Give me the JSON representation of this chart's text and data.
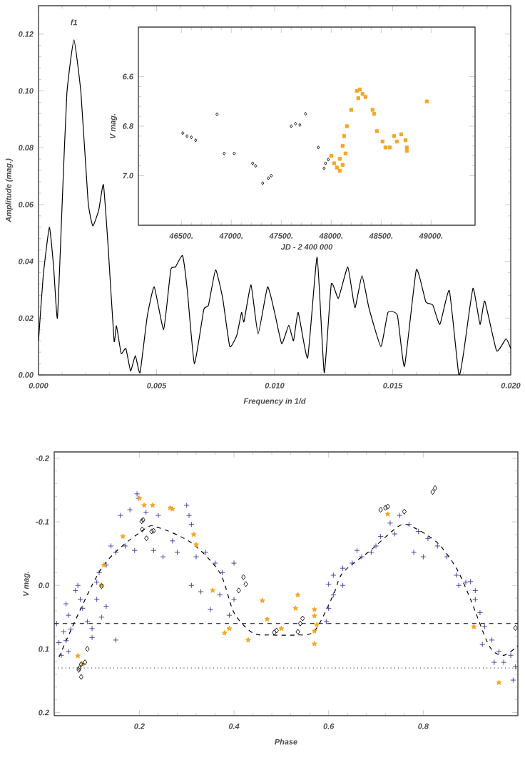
{
  "chart_data": [
    {
      "type": "line",
      "color": "#000000",
      "xlabel": "Frequency in 1/d",
      "ylabel": "Amplitude (mag.)",
      "xlim": [
        0,
        0.02
      ],
      "ylim": [
        0,
        0.13
      ],
      "xticks": [
        {
          "value": 0,
          "label": "0.000"
        },
        {
          "value": 0.005,
          "label": "0.005"
        },
        {
          "value": 0.01,
          "label": "0.010"
        },
        {
          "value": 0.015,
          "label": "0.015"
        },
        {
          "value": 0.02,
          "label": "0.020"
        }
      ],
      "yticks": [
        {
          "value": 0,
          "label": "0.00"
        },
        {
          "value": 0.02,
          "label": "0.02"
        },
        {
          "value": 0.04,
          "label": "0.04"
        },
        {
          "value": 0.06,
          "label": "0.06"
        },
        {
          "value": 0.08,
          "label": "0.08"
        },
        {
          "value": 0.1,
          "label": "0.10"
        },
        {
          "value": 0.12,
          "label": "0.12"
        }
      ],
      "annotations": [
        "f1"
      ],
      "x": [
        0,
        0.0002,
        0.00046,
        0.00064,
        0.0008,
        0.001,
        0.0012,
        0.0015,
        0.0018,
        0.0021,
        0.0023,
        0.00255,
        0.00275,
        0.00295,
        0.0032,
        0.0033,
        0.0035,
        0.0037,
        0.0039,
        0.0041,
        0.0043,
        0.0046,
        0.0049,
        0.0053,
        0.0056,
        0.0058,
        0.0061,
        0.0063,
        0.0066,
        0.007,
        0.0072,
        0.0075,
        0.0078,
        0.0081,
        0.0084,
        0.0086,
        0.0087,
        0.009,
        0.0093,
        0.0097,
        0.01,
        0.0103,
        0.0106,
        0.0108,
        0.011,
        0.0114,
        0.0118,
        0.0121,
        0.0124,
        0.0127,
        0.0131,
        0.0134,
        0.0137,
        0.014,
        0.0145,
        0.0148,
        0.0152,
        0.0155,
        0.016,
        0.0164,
        0.0167,
        0.017,
        0.0174,
        0.0178,
        0.018,
        0.0184,
        0.0187,
        0.0189,
        0.0194,
        0.0198,
        0.02
      ],
      "values": [
        0.012,
        0.035,
        0.052,
        0.038,
        0.02,
        0.06,
        0.099,
        0.118,
        0.099,
        0.061,
        0.0525,
        0.058,
        0.067,
        0.045,
        0.012,
        0.0173,
        0.0076,
        0.0093,
        0.0014,
        0.0068,
        0.0008,
        0.0203,
        0.031,
        0.016,
        0.037,
        0.038,
        0.042,
        0.03,
        0.004,
        0.023,
        0.0246,
        0.037,
        0.027,
        0.01,
        0.014,
        0.022,
        0.0187,
        0.0317,
        0.0144,
        0.031,
        0.022,
        0.011,
        0.0175,
        0.012,
        0.022,
        0.006,
        0.0415,
        0.0008,
        0.032,
        0.027,
        0.038,
        0.0237,
        0.035,
        0.0234,
        0.01,
        0.022,
        0.021,
        0.003,
        0.037,
        0.0258,
        0.0246,
        0.0178,
        0.0297,
        0.0,
        0.0076,
        0.0305,
        0.0178,
        0.026,
        0.0085,
        0.0127,
        0.0093
      ]
    },
    {
      "type": "scatter",
      "xlabel": "JD - 2 400 000",
      "ylabel": "V mag.",
      "xlim": [
        46070,
        49440
      ],
      "ylim": [
        7.2,
        6.4
      ],
      "xticks": [
        {
          "value": 46500,
          "label": "46500."
        },
        {
          "value": 47000,
          "label": "47000."
        },
        {
          "value": 47500,
          "label": "47500."
        },
        {
          "value": 48000,
          "label": "48000."
        },
        {
          "value": 48500,
          "label": "48500."
        },
        {
          "value": 49000,
          "label": "49000."
        }
      ],
      "yticks": [
        6.6,
        6.8,
        {
          "value": 7.0,
          "label": "7.0"
        }
      ],
      "series": [
        {
          "color": "#000000",
          "marker": "diamond",
          "x": [
            46514,
            46557,
            46600,
            46643,
            46857,
            46929,
            47029,
            47214,
            47243,
            47314,
            47371,
            47400,
            47600,
            47643,
            47686,
            47743,
            47871,
            47943,
            47971,
            47929
          ],
          "values": [
            6.828,
            6.84,
            6.845,
            6.857,
            6.752,
            6.91,
            6.91,
            6.95,
            6.96,
            7.03,
            7.01,
            7.0,
            6.8,
            6.79,
            6.795,
            6.75,
            6.886,
            6.95,
            6.935,
            6.97
          ]
        },
        {
          "color": "#f5a623",
          "marker": "square",
          "x": [
            48000,
            48029,
            48057,
            48086,
            48114,
            48086,
            48143,
            48129,
            48157,
            48114,
            48200,
            48257,
            48286,
            48314,
            48343,
            48271,
            48414,
            48429,
            48457,
            48514,
            48543,
            48586,
            48629,
            48657,
            48700,
            48743,
            48757,
            48757,
            48957
          ],
          "values": [
            6.92,
            6.95,
            6.967,
            6.98,
            6.956,
            6.932,
            6.91,
            6.84,
            6.8,
            6.88,
            6.734,
            6.658,
            6.652,
            6.67,
            6.682,
            6.687,
            6.734,
            6.75,
            6.82,
            6.862,
            6.886,
            6.886,
            6.84,
            6.862,
            6.833,
            6.857,
            6.886,
            6.9,
            6.7
          ]
        }
      ]
    },
    {
      "type": "scatter",
      "xlabel": "Phase",
      "ylabel": "V mag.",
      "xlim": [
        0.02,
        1.0
      ],
      "ylim": [
        0.205,
        -0.21
      ],
      "xticks": [
        0.2,
        0.4,
        0.6,
        0.8
      ],
      "yticks": [
        {
          "value": -0.2,
          "label": "-0.2"
        },
        {
          "value": -0.1,
          "label": "-0.1"
        },
        {
          "value": 0,
          "label": "0.0"
        },
        {
          "value": 0.1,
          "label": "0.1"
        },
        {
          "value": 0.2,
          "label": "0.2"
        }
      ],
      "ref_lines": [
        {
          "axis": "y",
          "value": 0.06,
          "color": "#000000",
          "line_style": "dashed"
        },
        {
          "axis": "y",
          "value": 0.13,
          "color": "#555555",
          "line_style": "dotted"
        }
      ],
      "series": [
        {
          "color": "#3b3399",
          "marker": "cross",
          "x": [
            0.195,
            0.198,
            0.18,
            0.16,
            0.214,
            0.24,
            0.3,
            0.305,
            0.31,
            0.14,
            0.15,
            0.17,
            0.19,
            0.23,
            0.25,
            0.27,
            0.28,
            0.32,
            0.34,
            0.36,
            0.375,
            0.4,
            0.11,
            0.115,
            0.13,
            0.07,
            0.6,
            0.61,
            0.63,
            0.65,
            0.67,
            0.69,
            0.71,
            0.73,
            0.75,
            0.77,
            0.79,
            0.74,
            0.81,
            0.83,
            0.85,
            0.78,
            0.8,
            0.87,
            0.875,
            0.89,
            0.66,
            0.7,
            0.045,
            0.05,
            0.055,
            0.045,
            0.04,
            0.05,
            0.075,
            0.08,
            0.09,
            0.1,
            0.11,
            0.13,
            0.15,
            0.1,
            0.065,
            0.12,
            0.31,
            0.33,
            0.35,
            0.37,
            0.39,
            0.4,
            0.6,
            0.61,
            0.595,
            0.63,
            0.91,
            0.92,
            0.93,
            0.945,
            0.96,
            0.97,
            0.985,
            0.995,
            0.99,
            0.95,
            0.91,
            0.9,
            0.925,
            0.03,
            0.035,
            0.025
          ],
          "values": [
            -0.144,
            -0.137,
            -0.119,
            -0.11,
            -0.115,
            -0.11,
            -0.126,
            -0.11,
            -0.096,
            -0.062,
            -0.052,
            -0.062,
            -0.055,
            -0.055,
            -0.045,
            -0.07,
            -0.052,
            -0.045,
            -0.052,
            -0.035,
            -0.02,
            -0.035,
            -0.005,
            -0.02,
            -0.032,
            0.0,
            -0.002,
            -0.016,
            -0.027,
            -0.035,
            -0.045,
            -0.052,
            -0.077,
            -0.098,
            -0.11,
            -0.096,
            -0.085,
            -0.081,
            -0.074,
            -0.062,
            -0.045,
            -0.052,
            -0.045,
            -0.016,
            0.0,
            -0.005,
            -0.055,
            -0.062,
            0.029,
            0.047,
            0.069,
            0.087,
            0.073,
            0.104,
            0.022,
            0.036,
            0.057,
            0.068,
            0.022,
            0.033,
            0.086,
            0.082,
            0.008,
            0.05,
            0.0,
            0.01,
            0.038,
            0.015,
            0.047,
            0.022,
            0.036,
            0.015,
            0.057,
            0.0,
            0.022,
            0.043,
            0.065,
            0.086,
            0.104,
            0.121,
            0.11,
            0.128,
            0.149,
            0.121,
            0.008,
            -0.006,
            0.093,
            0.09,
            0.11,
            0.06
          ]
        },
        {
          "color": "#f5a623",
          "marker": "star",
          "x": [
            0.2,
            0.21,
            0.228,
            0.265,
            0.27,
            0.165,
            0.315,
            0.32,
            0.125,
            0.725,
            0.355,
            0.46,
            0.535,
            0.53,
            0.47,
            0.38,
            0.39,
            0.43,
            0.57,
            0.57,
            0.57,
            0.57,
            0.575,
            0.5,
            0.12,
            0.07,
            0.08,
            0.907,
            0.96
          ],
          "values": [
            -0.137,
            -0.126,
            -0.126,
            -0.122,
            -0.12,
            -0.077,
            -0.08,
            -0.064,
            -0.032,
            -0.112,
            0.008,
            0.024,
            0.015,
            0.036,
            0.053,
            0.075,
            0.068,
            0.086,
            0.038,
            0.048,
            0.072,
            0.092,
            0.062,
            0.068,
            0.0,
            0.111,
            0.124,
            0.065,
            0.153
          ]
        },
        {
          "color": "#000000",
          "marker": "diamond",
          "x": [
            0.205,
            0.208,
            0.206,
            0.226,
            0.23,
            0.215,
            0.71,
            0.72,
            0.725,
            0.76,
            0.82,
            0.825,
            0.12,
            0.09,
            0.085,
            0.077,
            0.073,
            0.077,
            0.072,
            0.41,
            0.425,
            0.42,
            0.485,
            0.49,
            0.535,
            0.54,
            0.545,
            0.995
          ],
          "values": [
            -0.101,
            -0.103,
            -0.088,
            -0.085,
            -0.086,
            -0.074,
            -0.119,
            -0.122,
            -0.124,
            -0.116,
            -0.147,
            -0.153,
            0.001,
            0.1,
            0.121,
            0.124,
            0.13,
            0.144,
            0.133,
            0.008,
            -0.002,
            -0.013,
            0.074,
            0.071,
            0.073,
            0.06,
            0.052,
            0.067
          ]
        },
        {
          "type": "line",
          "color": "#000000",
          "line_style": "dashed",
          "x": [
            0.03,
            0.12,
            0.21,
            0.24,
            0.31,
            0.37,
            0.4,
            0.44,
            0.48,
            0.53,
            0.57,
            0.61,
            0.63,
            0.69,
            0.75,
            0.78,
            0.83,
            0.87,
            0.9,
            0.94,
            0.97,
            1.0
          ],
          "values": [
            0.113,
            -0.027,
            -0.088,
            -0.091,
            -0.067,
            -0.02,
            0.043,
            0.075,
            0.078,
            0.078,
            0.072,
            0.015,
            -0.02,
            -0.056,
            -0.094,
            -0.091,
            -0.067,
            -0.027,
            0.022,
            0.096,
            0.11,
            0.095
          ]
        }
      ]
    }
  ]
}
